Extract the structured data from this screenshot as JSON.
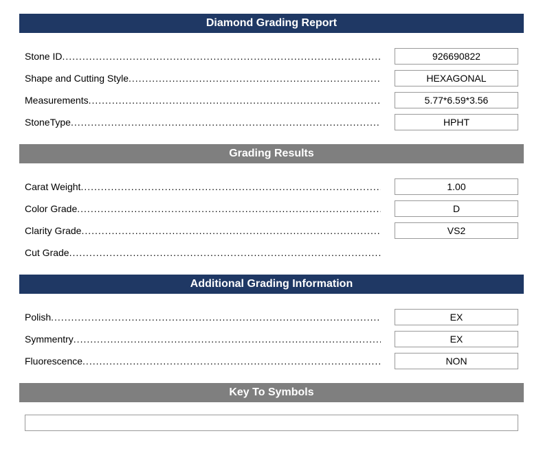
{
  "colors": {
    "header_primary_bg": "#1f3864",
    "header_secondary_bg": "#7f7f7f",
    "header_text": "#ffffff",
    "box_border": "#999999",
    "page_bg": "#ffffff",
    "text": "#000000"
  },
  "sections": {
    "report": {
      "title": "Diamond Grading Report",
      "rows": [
        {
          "label": "Stone ID",
          "value": "926690822"
        },
        {
          "label": "Shape and Cutting Style",
          "value": "HEXAGONAL"
        },
        {
          "label": "Measurements",
          "value": "5.77*6.59*3.56"
        },
        {
          "label": "StoneType",
          "value": "HPHT"
        }
      ]
    },
    "grading": {
      "title": "Grading Results",
      "rows": [
        {
          "label": "Carat Weight",
          "value": "1.00"
        },
        {
          "label": "Color Grade",
          "value": "D"
        },
        {
          "label": "Clarity Grade",
          "value": "VS2"
        },
        {
          "label": "Cut Grade",
          "value": null
        }
      ]
    },
    "additional": {
      "title": "Additional Grading Information",
      "rows": [
        {
          "label": "Polish",
          "value": "EX"
        },
        {
          "label": "Symmentry",
          "value": "EX"
        },
        {
          "label": "Fluorescence",
          "value": "NON"
        }
      ]
    },
    "symbols": {
      "title": "Key To Symbols"
    }
  }
}
